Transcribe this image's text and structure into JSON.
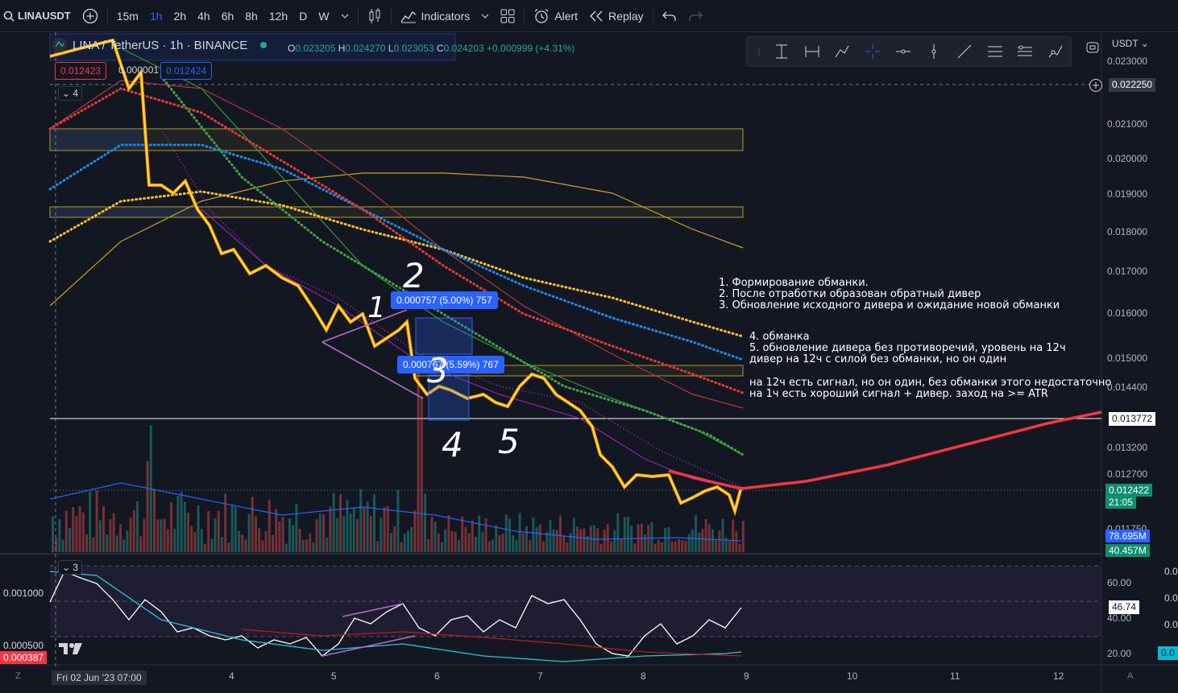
{
  "toolbar": {
    "symbol": "LINAUSDT",
    "intervals": [
      "15m",
      "1h",
      "2h",
      "4h",
      "6h",
      "8h",
      "12h",
      "D",
      "W"
    ],
    "active_interval": "1h",
    "indicators_label": "Indicators",
    "alert_label": "Alert",
    "replay_label": "Replay"
  },
  "legend": {
    "title": "LINA / TetherUS · 1h · BINANCE",
    "open_label": "O",
    "open": "0.023205",
    "high_label": "H",
    "high": "0.024270",
    "low_label": "L",
    "low": "0.023053",
    "close_label": "C",
    "close": "0.024203",
    "change": "+0.000999 (+4.31%)",
    "sell_price": "0.012423",
    "spread": "0.000001",
    "buy_price": "0.012424",
    "indicators_count": "4",
    "osc_count": "3"
  },
  "price_axis": {
    "currency": "USDT",
    "labels": [
      "0.023000",
      "0.021000",
      "0.020000",
      "0.019000",
      "0.018000",
      "0.017000",
      "0.016000",
      "0.015000",
      "0.014400",
      "0.013200",
      "0.012700",
      "0.011750"
    ],
    "crosshair_price": "0.022250",
    "hline_price": "0.013772",
    "last_price": "0.012422",
    "countdown": "21:05",
    "vol_ma": "78.695M",
    "vol": "40.457M"
  },
  "osc_axis": {
    "labels": [
      "60.00",
      "40.00",
      "20.00"
    ],
    "value": "46.74",
    "left_labels": [
      "0.001000",
      "0.000500"
    ],
    "left_value": "0.000387",
    "right_edge": [
      "0.0",
      "0.0",
      "0.0",
      "0.0",
      "0.0"
    ]
  },
  "time_axis": {
    "cursor_label": "Fri 02 Jun '23   07:00",
    "labels": [
      "4",
      "5",
      "6",
      "7",
      "8",
      "9",
      "10",
      "11",
      "12"
    ],
    "corner_left": "Z",
    "corner_right": "A"
  },
  "measures": [
    {
      "text": "0.000757 (5.00%) 757"
    },
    {
      "text": "0.000767 (5.59%) 767"
    }
  ],
  "annotations": {
    "block1": "1. Формирование обманки.\n2. После отработки образован обратный дивер\n3. Обновление исходного дивера и ожидание новой обманки",
    "block2": "4. обманка\n5. обновление дивера без противоречий, уровень на 12ч\nдивер на 12ч с силой без обманки, но он один",
    "block3": "на 12ч есть сигнал, но он один, без обманки этого недостаточно\nна 1ч есть хороший сигнал + дивер. заход на >= ATR"
  },
  "handwritten": [
    "1",
    "2",
    "3",
    "4",
    "5"
  ],
  "colors": {
    "background": "#131722",
    "up": "#26a69a",
    "down": "#ef5350",
    "accent": "#2962ff",
    "candles_up": "#ffeb3b",
    "candles_down": "#ff9800",
    "ema_green": "#43a047",
    "ema_red": "#e53935",
    "ema_yellow": "#fbc02d",
    "ema_blue": "#1e88e5",
    "ema_purple": "#9c27b0",
    "forecast": "#f23645"
  },
  "icons": [
    "plus-circle-icon",
    "bar-style-icon",
    "indicators-icon",
    "layout-grid-icon",
    "alarm-clock-icon",
    "replay-icon",
    "undo-icon",
    "redo-icon",
    "chevron-down-icon"
  ]
}
